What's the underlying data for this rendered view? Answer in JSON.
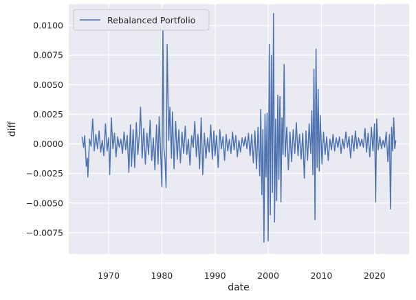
{
  "chart_data": {
    "type": "line",
    "title": "",
    "xlabel": "date",
    "ylabel": "diff",
    "xlim": [
      1962.5,
      2026.5
    ],
    "ylim": [
      -0.0093,
      0.0118
    ],
    "x_ticks": [
      1970,
      1980,
      1990,
      2000,
      2010,
      2020
    ],
    "x_tick_labels": [
      "1970",
      "1980",
      "1990",
      "2000",
      "2010",
      "2020"
    ],
    "y_ticks": [
      -0.0075,
      -0.005,
      -0.0025,
      0.0,
      0.0025,
      0.005,
      0.0075,
      0.01
    ],
    "y_tick_labels": [
      "−0.0075",
      "−0.0050",
      "−0.0025",
      "0.0000",
      "0.0025",
      "0.0050",
      "0.0075",
      "0.0100"
    ],
    "grid": true,
    "legend_position": "top-left",
    "colors": {
      "line": "#4c72b0",
      "background": "#eaeaf2",
      "grid": "#ffffff"
    },
    "series": [
      {
        "name": "Rebalanced Portfolio",
        "points": [
          [
            1965.0,
            0.0006
          ],
          [
            1965.3,
            -0.0003
          ],
          [
            1965.5,
            0.0007
          ],
          [
            1965.8,
            -0.0019
          ],
          [
            1966.0,
            -0.0012
          ],
          [
            1966.1,
            -0.0028
          ],
          [
            1966.4,
            0.0004
          ],
          [
            1966.7,
            -0.0002
          ],
          [
            1967.0,
            0.0021
          ],
          [
            1967.3,
            -0.0006
          ],
          [
            1967.6,
            0.0008
          ],
          [
            1967.9,
            -0.0004
          ],
          [
            1968.2,
            0.0011
          ],
          [
            1968.5,
            -0.0007
          ],
          [
            1968.8,
            0.0003
          ],
          [
            1969.1,
            -0.001
          ],
          [
            1969.4,
            0.0017
          ],
          [
            1969.7,
            -0.0006
          ],
          [
            1970.0,
            0.0005
          ],
          [
            1970.2,
            -0.0026
          ],
          [
            1970.5,
            0.0022
          ],
          [
            1970.8,
            -0.0004
          ],
          [
            1971.1,
            0.0009
          ],
          [
            1971.4,
            -0.0011
          ],
          [
            1971.7,
            0.0006
          ],
          [
            1972.0,
            -0.0003
          ],
          [
            1972.3,
            0.0004
          ],
          [
            1972.6,
            -0.0008
          ],
          [
            1972.9,
            0.001
          ],
          [
            1973.2,
            -0.0005
          ],
          [
            1973.5,
            0.0007
          ],
          [
            1973.8,
            -0.0024
          ],
          [
            1974.1,
            0.0016
          ],
          [
            1974.3,
            -0.0019
          ],
          [
            1974.6,
            0.0012
          ],
          [
            1974.9,
            -0.002
          ],
          [
            1975.2,
            0.0018
          ],
          [
            1975.5,
            -0.0009
          ],
          [
            1975.8,
            0.001
          ],
          [
            1976.0,
            0.0031
          ],
          [
            1976.3,
            -0.0012
          ],
          [
            1976.6,
            0.0013
          ],
          [
            1976.9,
            -0.0017
          ],
          [
            1977.2,
            0.0009
          ],
          [
            1977.5,
            -0.0009
          ],
          [
            1977.8,
            0.002
          ],
          [
            1978.1,
            -0.0014
          ],
          [
            1978.4,
            0.0005
          ],
          [
            1978.7,
            -0.0022
          ],
          [
            1979.0,
            0.0016
          ],
          [
            1979.3,
            -0.0017
          ],
          [
            1979.5,
            0.0023
          ],
          [
            1979.8,
            -0.001
          ],
          [
            1980.0,
            -0.0036
          ],
          [
            1980.2,
            0.0098
          ],
          [
            1980.4,
            -0.0004
          ],
          [
            1980.6,
            -0.0013
          ],
          [
            1980.8,
            -0.0037
          ],
          [
            1981.0,
            0.0084
          ],
          [
            1981.3,
            0.0003
          ],
          [
            1981.5,
            0.0031
          ],
          [
            1981.8,
            -0.0012
          ],
          [
            1982.0,
            0.0027
          ],
          [
            1982.3,
            -0.0021
          ],
          [
            1982.6,
            0.0019
          ],
          [
            1982.9,
            -0.0013
          ],
          [
            1983.2,
            0.0012
          ],
          [
            1983.5,
            -0.0016
          ],
          [
            1983.8,
            0.001
          ],
          [
            1984.1,
            -0.0008
          ],
          [
            1984.4,
            0.0015
          ],
          [
            1984.7,
            -0.0009
          ],
          [
            1985.0,
            0.0004
          ],
          [
            1985.3,
            -0.0018
          ],
          [
            1985.6,
            0.0007
          ],
          [
            1985.9,
            -0.0003
          ],
          [
            1986.2,
            0.0019
          ],
          [
            1986.5,
            -0.0011
          ],
          [
            1986.8,
            0.0008
          ],
          [
            1987.1,
            -0.0021
          ],
          [
            1987.4,
            0.0022
          ],
          [
            1987.7,
            -0.0026
          ],
          [
            1988.0,
            0.0009
          ],
          [
            1988.3,
            -0.0012
          ],
          [
            1988.6,
            0.0005
          ],
          [
            1988.9,
            -0.0007
          ],
          [
            1989.2,
            0.0016
          ],
          [
            1989.5,
            -0.0013
          ],
          [
            1989.8,
            0.0011
          ],
          [
            1990.0,
            -0.001
          ],
          [
            1990.3,
            0.0007
          ],
          [
            1990.6,
            -0.002
          ],
          [
            1990.9,
            0.0012
          ],
          [
            1991.2,
            -0.0004
          ],
          [
            1991.5,
            0.0006
          ],
          [
            1991.8,
            -0.0014
          ],
          [
            1992.1,
            0.0008
          ],
          [
            1992.4,
            -0.0006
          ],
          [
            1992.7,
            0.0004
          ],
          [
            1993.0,
            -0.0008
          ],
          [
            1993.3,
            0.001
          ],
          [
            1993.6,
            -0.0005
          ],
          [
            1993.9,
            0.0007
          ],
          [
            1994.2,
            -0.0011
          ],
          [
            1994.5,
            0.0003
          ],
          [
            1994.8,
            -0.0007
          ],
          [
            1995.1,
            0.0005
          ],
          [
            1995.4,
            -0.0002
          ],
          [
            1995.7,
            0.0006
          ],
          [
            1996.0,
            -0.0004
          ],
          [
            1996.3,
            0.0009
          ],
          [
            1996.6,
            -0.001
          ],
          [
            1996.9,
            0.0008
          ],
          [
            1997.2,
            -0.0016
          ],
          [
            1997.5,
            0.0011
          ],
          [
            1997.8,
            -0.0021
          ],
          [
            1998.1,
            0.0014
          ],
          [
            1998.4,
            -0.0027
          ],
          [
            1998.6,
            0.0029
          ],
          [
            1998.8,
            -0.0043
          ],
          [
            1999.0,
            0.0012
          ],
          [
            1999.2,
            -0.0083
          ],
          [
            1999.4,
            0.0025
          ],
          [
            1999.6,
            -0.0028
          ],
          [
            1999.8,
            0.0026
          ],
          [
            2000.0,
            -0.0082
          ],
          [
            2000.2,
            0.0084
          ],
          [
            2000.4,
            -0.006
          ],
          [
            2000.6,
            0.0075
          ],
          [
            2000.8,
            -0.0041
          ],
          [
            2001.0,
            0.011
          ],
          [
            2001.2,
            -0.0066
          ],
          [
            2001.4,
            0.0021
          ],
          [
            2001.6,
            -0.0048
          ],
          [
            2001.8,
            0.0041
          ],
          [
            2002.0,
            -0.003
          ],
          [
            2002.2,
            0.004
          ],
          [
            2002.4,
            -0.0049
          ],
          [
            2002.6,
            0.0022
          ],
          [
            2002.8,
            -0.0009
          ],
          [
            2003.0,
            0.0067
          ],
          [
            2003.2,
            -0.0011
          ],
          [
            2003.5,
            0.0014
          ],
          [
            2003.8,
            -0.0022
          ],
          [
            2004.1,
            0.001
          ],
          [
            2004.4,
            -0.0015
          ],
          [
            2004.7,
            0.0012
          ],
          [
            2005.0,
            -0.0008
          ],
          [
            2005.3,
            0.0018
          ],
          [
            2005.6,
            -0.001
          ],
          [
            2005.9,
            0.0008
          ],
          [
            2006.2,
            -0.0013
          ],
          [
            2006.5,
            0.0009
          ],
          [
            2006.8,
            -0.0029
          ],
          [
            2007.1,
            0.0011
          ],
          [
            2007.4,
            -0.0014
          ],
          [
            2007.7,
            0.0017
          ],
          [
            2008.0,
            -0.0008
          ],
          [
            2008.2,
            0.0028
          ],
          [
            2008.4,
            -0.0026
          ],
          [
            2008.6,
            0.0063
          ],
          [
            2008.8,
            -0.0064
          ],
          [
            2009.0,
            0.008
          ],
          [
            2009.2,
            -0.002
          ],
          [
            2009.4,
            0.0046
          ],
          [
            2009.6,
            -0.0023
          ],
          [
            2009.8,
            0.0024
          ],
          [
            2010.1,
            -0.0017
          ],
          [
            2010.4,
            0.001
          ],
          [
            2010.7,
            -0.0009
          ],
          [
            2011.0,
            0.0006
          ],
          [
            2011.3,
            -0.0014
          ],
          [
            2011.6,
            0.0004
          ],
          [
            2011.9,
            -0.0005
          ],
          [
            2012.2,
            0.0008
          ],
          [
            2012.5,
            -0.0006
          ],
          [
            2012.8,
            0.0005
          ],
          [
            2013.1,
            -0.0003
          ],
          [
            2013.4,
            0.0006
          ],
          [
            2013.7,
            -0.0008
          ],
          [
            2014.0,
            0.0004
          ],
          [
            2014.3,
            -0.0004
          ],
          [
            2014.6,
            0.001
          ],
          [
            2014.9,
            -0.0003
          ],
          [
            2015.2,
            0.0006
          ],
          [
            2015.5,
            -0.0012
          ],
          [
            2015.8,
            0.0007
          ],
          [
            2016.1,
            -0.0006
          ],
          [
            2016.4,
            0.0011
          ],
          [
            2016.7,
            -0.0004
          ],
          [
            2017.0,
            0.0005
          ],
          [
            2017.3,
            -0.0002
          ],
          [
            2017.6,
            0.0004
          ],
          [
            2017.9,
            -0.0003
          ],
          [
            2018.2,
            0.0013
          ],
          [
            2018.5,
            -0.0007
          ],
          [
            2018.8,
            0.0009
          ],
          [
            2019.1,
            -0.0011
          ],
          [
            2019.4,
            0.0014
          ],
          [
            2019.7,
            -0.0006
          ],
          [
            2020.0,
            0.0017
          ],
          [
            2020.2,
            -0.0049
          ],
          [
            2020.4,
            0.0021
          ],
          [
            2020.7,
            -0.0005
          ],
          [
            2021.0,
            0.0006
          ],
          [
            2021.3,
            -0.0004
          ],
          [
            2021.6,
            0.0003
          ],
          [
            2021.9,
            -0.0003
          ],
          [
            2022.2,
            0.001
          ],
          [
            2022.5,
            -0.0015
          ],
          [
            2022.8,
            0.0008
          ],
          [
            2023.0,
            -0.0055
          ],
          [
            2023.2,
            0.0014
          ],
          [
            2023.4,
            -0.0006
          ],
          [
            2023.6,
            0.0022
          ],
          [
            2023.8,
            -0.0004
          ],
          [
            2024.0,
            0.0003
          ]
        ]
      }
    ]
  }
}
